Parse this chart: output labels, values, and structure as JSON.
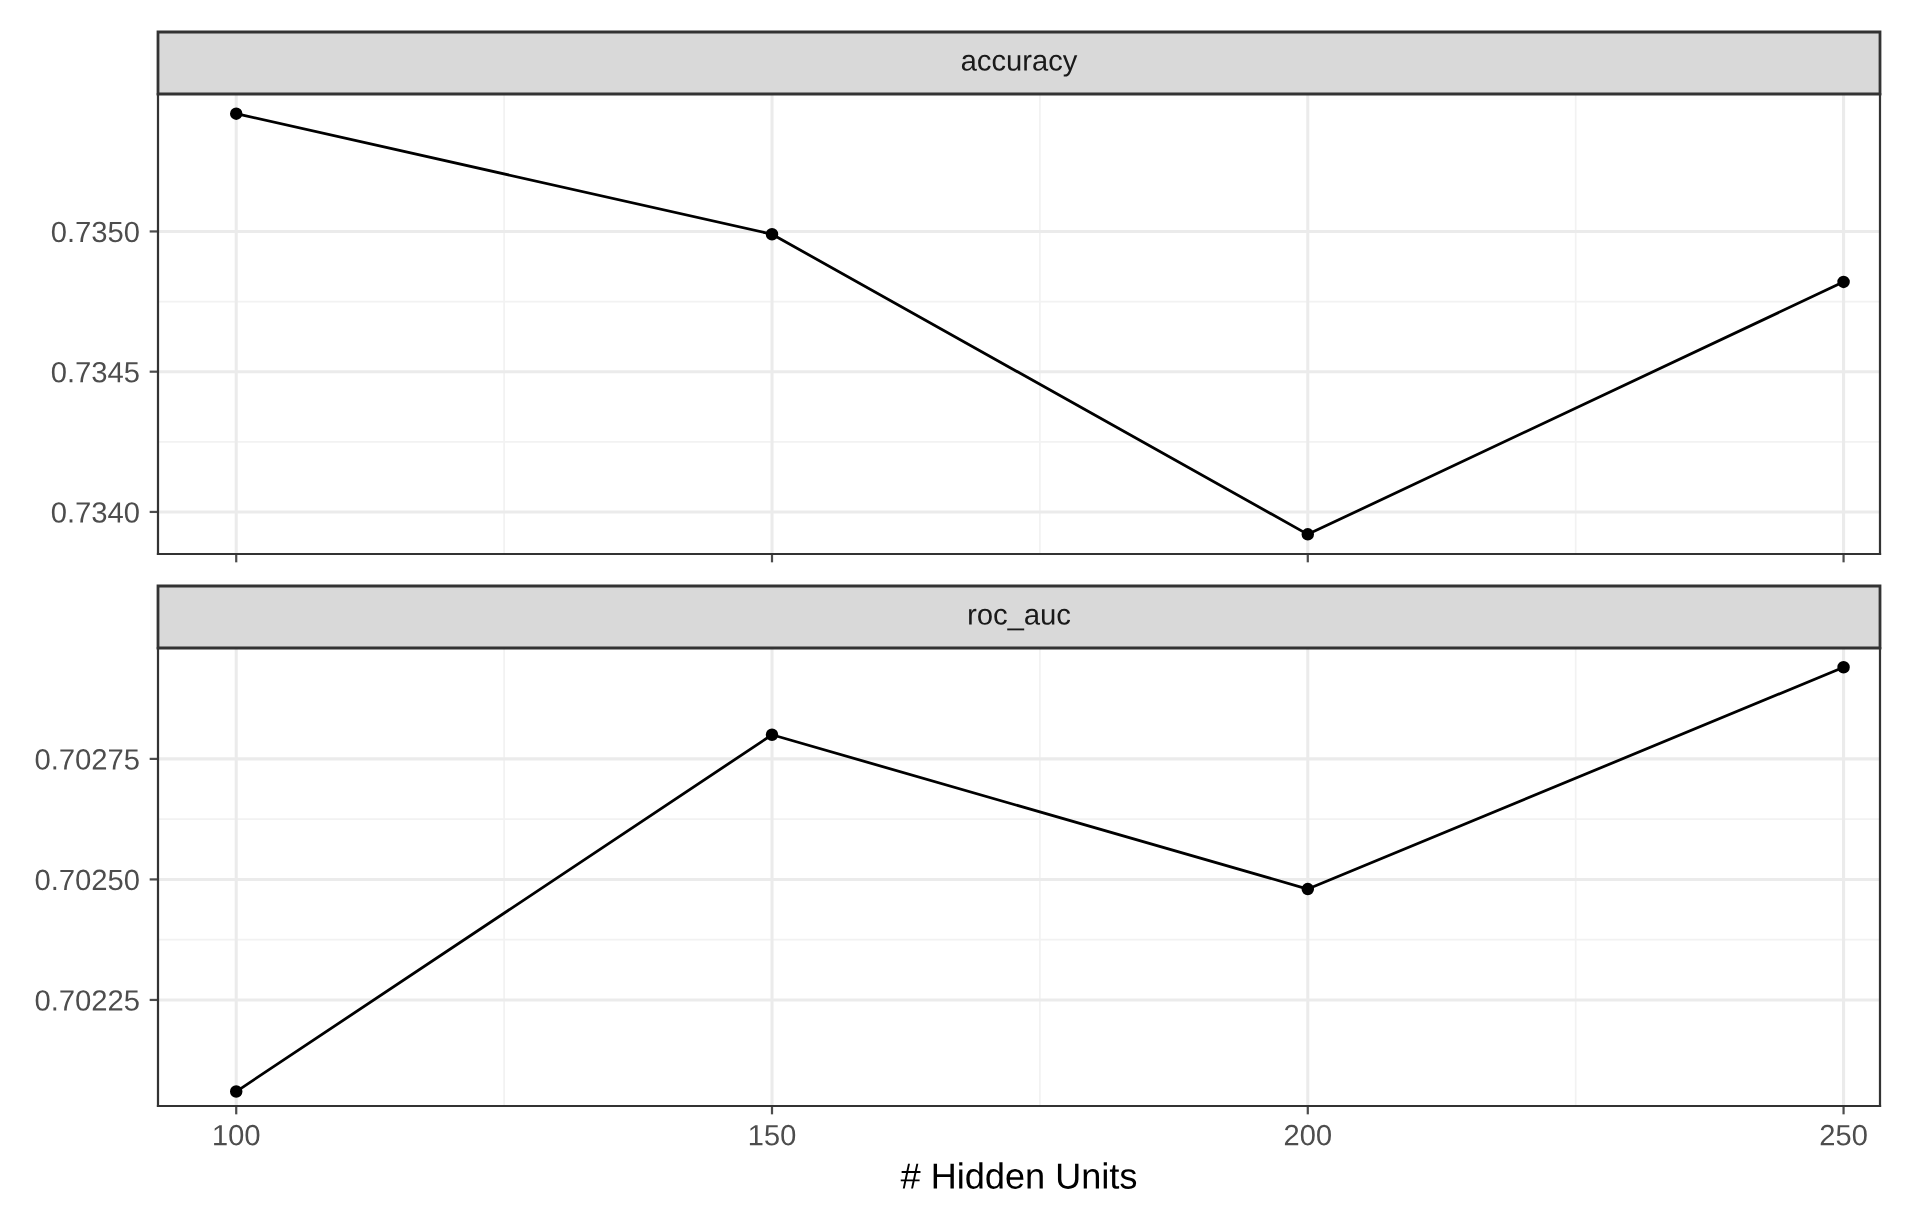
{
  "chart_data": [
    {
      "type": "line",
      "title": "accuracy",
      "x": [
        100,
        150,
        200,
        250
      ],
      "values": [
        0.73542,
        0.73499,
        0.73392,
        0.73482
      ],
      "color": "#000000",
      "marker": "circle",
      "line_style": "solid",
      "xlim": [
        92.7,
        253.4
      ],
      "xticks": [
        100,
        150,
        200,
        250
      ],
      "ylim": [
        0.73385,
        0.73549
      ],
      "yticks": [
        {
          "value": 0.734,
          "label": "0.7340"
        },
        {
          "value": 0.7345,
          "label": "0.7345"
        },
        {
          "value": 0.735,
          "label": "0.7350"
        }
      ],
      "grid": true,
      "tick_labels": "y"
    },
    {
      "type": "line",
      "title": "roc_auc",
      "xlabel": "# Hidden Units",
      "x": [
        100,
        150,
        200,
        250
      ],
      "values": [
        0.70206,
        0.7028,
        0.70248,
        0.70294
      ],
      "color": "#000000",
      "marker": "circle",
      "line_style": "solid",
      "xlim": [
        92.7,
        253.4
      ],
      "xticks": [
        100,
        150,
        200,
        250
      ],
      "ylim": [
        0.70203,
        0.70298
      ],
      "yticks": [
        0.70225,
        {
          "value": 0.7025,
          "label": "0.70250"
        },
        0.70275
      ],
      "grid": true
    }
  ]
}
